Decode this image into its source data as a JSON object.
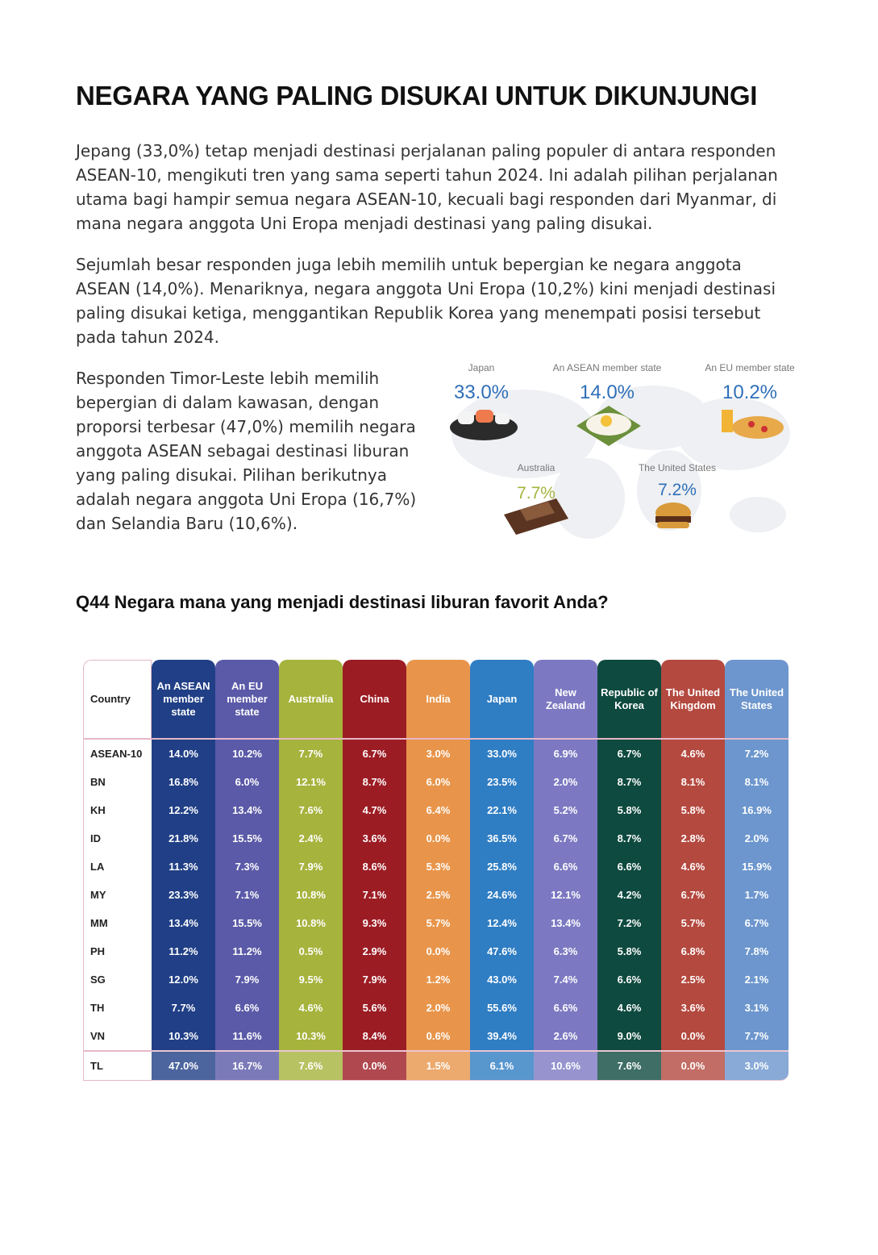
{
  "header": {
    "title": "NEGARA YANG PALING DISUKAI UNTUK DIKUNJUNGI"
  },
  "paragraphs": [
    "Jepang (33,0%) tetap menjadi destinasi perjalanan paling populer di antara responden ASEAN-10, mengikuti tren yang sama seperti tahun 2024. Ini adalah pilihan perjalanan utama bagi hampir semua negara ASEAN-10, kecuali bagi responden dari Myanmar, di mana negara anggota Uni Eropa menjadi destinasi yang paling disukai.",
    "Sejumlah besar responden juga lebih memilih untuk bepergian ke negara anggota ASEAN (14,0%). Menariknya, negara anggota Uni Eropa (10,2%) kini menjadi destinasi paling disukai ketiga, menggantikan Republik Korea yang menempati posisi tersebut pada tahun 2024.",
    "Responden Timor-Leste lebih memilih bepergian di dalam kawasan, dengan proporsi terbesar (47,0%) memilih negara anggota ASEAN sebagai destinasi liburan yang paling disukai. Pilihan berikutnya adalah negara anggota Uni Eropa (16,7%) dan Selandia Baru (10,6%)."
  ],
  "infographic": [
    {
      "label": "Japan",
      "value": "33.0%"
    },
    {
      "label": "An ASEAN member state",
      "value": "14.0%"
    },
    {
      "label": "An EU member state",
      "value": "10.2%"
    },
    {
      "label": "Australia",
      "value": "7.7%"
    },
    {
      "label": "The United States",
      "value": "7.2%"
    }
  ],
  "question": "Q44 Negara mana yang menjadi destinasi liburan favorit Anda?",
  "table": {
    "corner": "Country",
    "columns": [
      "An ASEAN member state",
      "An EU member state",
      "Australia",
      "China",
      "India",
      "Japan",
      "New Zealand",
      "Republic of Korea",
      "The United Kingdom",
      "The United States"
    ],
    "colors": [
      "#203f86",
      "#5b5aa8",
      "#a6b33c",
      "#9c1c24",
      "#e8954b",
      "#2f7dc3",
      "#7c79c2",
      "#0e4a3f",
      "#b4493f",
      "#6c96cd"
    ],
    "rows": [
      {
        "label": "ASEAN-10",
        "cells": [
          "14.0%",
          "10.2%",
          "7.7%",
          "6.7%",
          "3.0%",
          "33.0%",
          "6.9%",
          "6.7%",
          "4.6%",
          "7.2%"
        ]
      },
      {
        "label": "BN",
        "cells": [
          "16.8%",
          "6.0%",
          "12.1%",
          "8.7%",
          "6.0%",
          "23.5%",
          "2.0%",
          "8.7%",
          "8.1%",
          "8.1%"
        ]
      },
      {
        "label": "KH",
        "cells": [
          "12.2%",
          "13.4%",
          "7.6%",
          "4.7%",
          "6.4%",
          "22.1%",
          "5.2%",
          "5.8%",
          "5.8%",
          "16.9%"
        ]
      },
      {
        "label": "ID",
        "cells": [
          "21.8%",
          "15.5%",
          "2.4%",
          "3.6%",
          "0.0%",
          "36.5%",
          "6.7%",
          "8.7%",
          "2.8%",
          "2.0%"
        ]
      },
      {
        "label": "LA",
        "cells": [
          "11.3%",
          "7.3%",
          "7.9%",
          "8.6%",
          "5.3%",
          "25.8%",
          "6.6%",
          "6.6%",
          "4.6%",
          "15.9%"
        ]
      },
      {
        "label": "MY",
        "cells": [
          "23.3%",
          "7.1%",
          "10.8%",
          "7.1%",
          "2.5%",
          "24.6%",
          "12.1%",
          "4.2%",
          "6.7%",
          "1.7%"
        ]
      },
      {
        "label": "MM",
        "cells": [
          "13.4%",
          "15.5%",
          "10.8%",
          "9.3%",
          "5.7%",
          "12.4%",
          "13.4%",
          "7.2%",
          "5.7%",
          "6.7%"
        ]
      },
      {
        "label": "PH",
        "cells": [
          "11.2%",
          "11.2%",
          "0.5%",
          "2.9%",
          "0.0%",
          "47.6%",
          "6.3%",
          "5.8%",
          "6.8%",
          "7.8%"
        ]
      },
      {
        "label": "SG",
        "cells": [
          "12.0%",
          "7.9%",
          "9.5%",
          "7.9%",
          "1.2%",
          "43.0%",
          "7.4%",
          "6.6%",
          "2.5%",
          "2.1%"
        ]
      },
      {
        "label": "TH",
        "cells": [
          "7.7%",
          "6.6%",
          "4.6%",
          "5.6%",
          "2.0%",
          "55.6%",
          "6.6%",
          "4.6%",
          "3.6%",
          "3.1%"
        ]
      },
      {
        "label": "VN",
        "cells": [
          "10.3%",
          "11.6%",
          "10.3%",
          "8.4%",
          "0.6%",
          "39.4%",
          "2.6%",
          "9.0%",
          "0.0%",
          "7.7%"
        ]
      },
      {
        "label": "TL",
        "cells": [
          "47.0%",
          "16.7%",
          "7.6%",
          "0.0%",
          "1.5%",
          "6.1%",
          "10.6%",
          "7.6%",
          "0.0%",
          "3.0%"
        ]
      }
    ]
  }
}
